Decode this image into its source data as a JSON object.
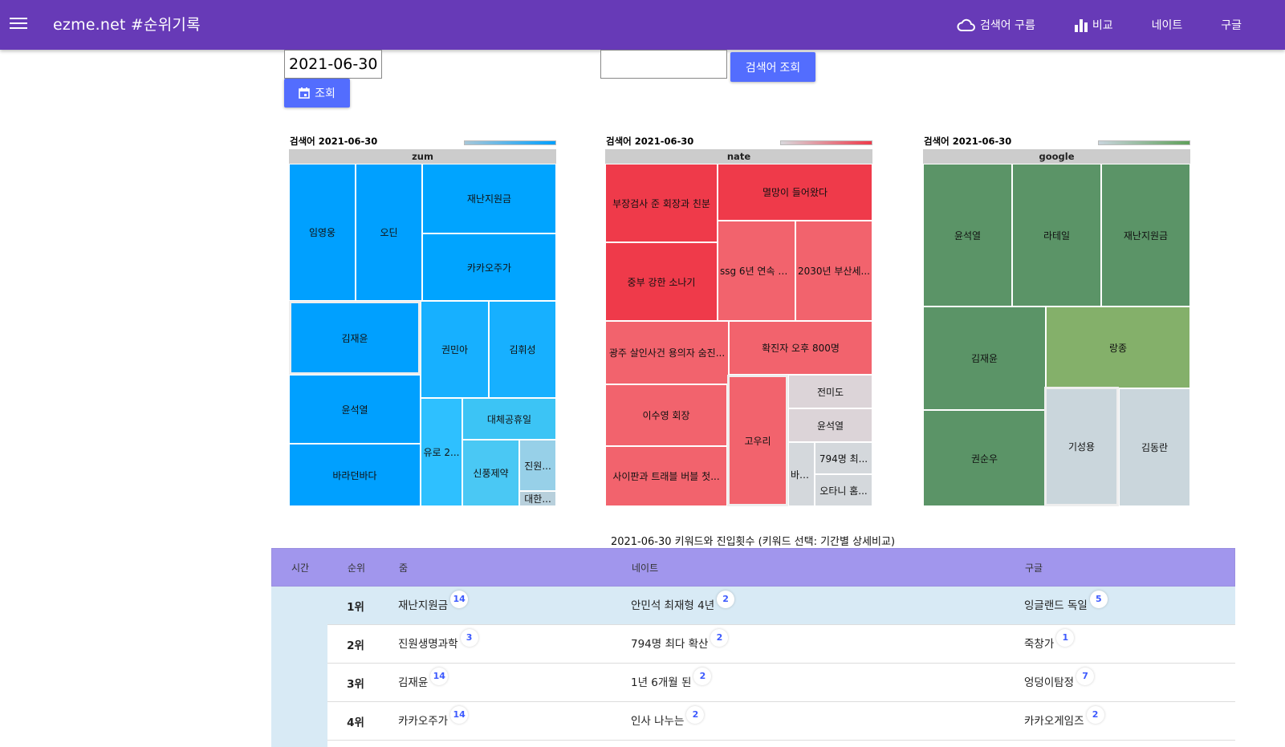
{
  "appbar": {
    "brand": "ezme.net #순위기록",
    "nav": [
      {
        "label": "검색어 구름",
        "icon": "cloud-icon"
      },
      {
        "label": "비교",
        "icon": "bar-chart-icon"
      },
      {
        "label": "네이트",
        "icon": ""
      },
      {
        "label": "구글",
        "icon": ""
      }
    ]
  },
  "controls": {
    "date_value": "2021-06-30",
    "query_button": "조회",
    "keyword_value": "",
    "keyword_button": "검색어 조회"
  },
  "treemaps": [
    {
      "title": "검색어 2021-06-30",
      "source": "zum",
      "legend_gradient": [
        "#a7c7d8",
        "#00a0ff"
      ],
      "cells": [
        "임영웅",
        "오딘",
        "재난지원금",
        "카카오주가",
        "김재윤",
        "권민아",
        "김휘성",
        "윤석열",
        "유로 2...",
        "대체공휴일",
        "바라던바다",
        "신풍제약",
        "진원...",
        "대한..."
      ]
    },
    {
      "title": "검색어 2021-06-30",
      "source": "nate",
      "legend_gradient": [
        "#d8d8dc",
        "#ef3a4a"
      ],
      "cells": [
        "부장검사 준 회장과 친분",
        "멸망이 들어왔다",
        "중부 강한 소나기",
        "ssg 6년 연속 2...",
        "2030년 부산세...",
        "광주 살인사건 용의자 숨진...",
        "확진자 오후 800명",
        "이수영 회장",
        "고우리",
        "전미도",
        "윤석열",
        "사이판과 트래블 버블 첫...",
        "바라...",
        "794명 최...",
        "오타니 홈..."
      ]
    },
    {
      "title": "검색어 2021-06-30",
      "source": "google",
      "legend_gradient": [
        "#c8d4dc",
        "#5fa05a"
      ],
      "cells": [
        "윤석열",
        "라테일",
        "재난지원금",
        "김재윤",
        "랑종",
        "권순우",
        "기성용",
        "김동란"
      ]
    }
  ],
  "table": {
    "caption": "2021-06-30 키워드와 진입횟수 (키워드 선택: 기간별 상세비교)",
    "headers": {
      "time": "시간",
      "rank": "순위",
      "zum": "줌",
      "nate": "네이트",
      "google": "구글"
    },
    "rows": [
      {
        "rank": "1위",
        "zum": "재난지원금",
        "zum_count": "14",
        "nate": "안민석 최재형 4년",
        "nate_count": "2",
        "google": "잉글랜드 독일",
        "google_count": "5"
      },
      {
        "rank": "2위",
        "zum": "진원생명과학",
        "zum_count": "3",
        "nate": "794명 최다 확산",
        "nate_count": "2",
        "google": "죽창가",
        "google_count": "1"
      },
      {
        "rank": "3위",
        "zum": "김재윤",
        "zum_count": "14",
        "nate": "1년 6개월 된",
        "nate_count": "2",
        "google": "엉덩이탐정",
        "google_count": "7"
      },
      {
        "rank": "4위",
        "zum": "카카오주가",
        "zum_count": "14",
        "nate": "인사 나누는",
        "nate_count": "2",
        "google": "카카오게임즈",
        "google_count": "2"
      }
    ]
  },
  "colors": {
    "appbar": "#673ab7",
    "button": "#536dfe",
    "table_header": "#a196ed",
    "highlight_row": "#d8eaf5"
  }
}
